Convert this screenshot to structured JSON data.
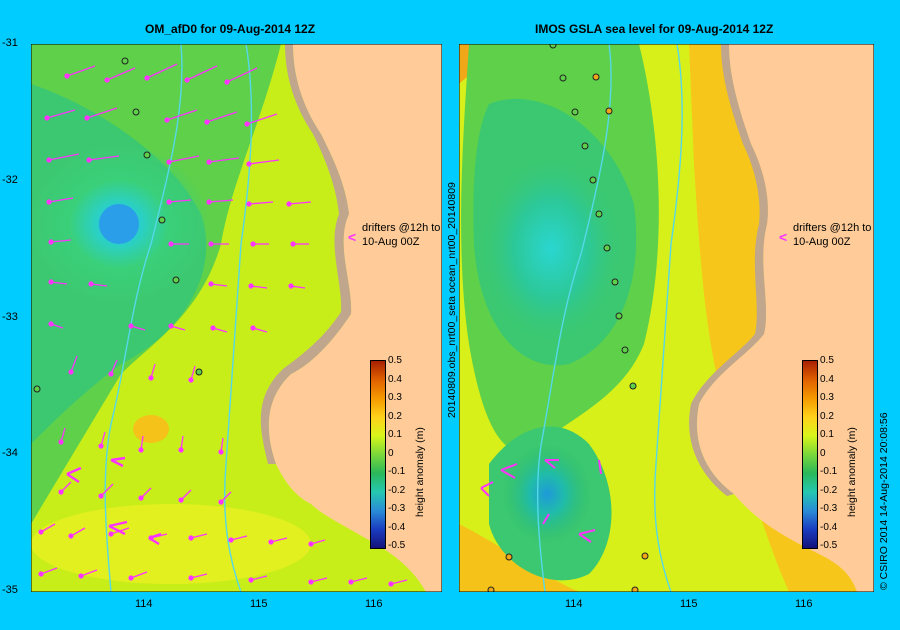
{
  "left_panel": {
    "title": "OM_afD0  for 09-Aug-2014 12Z",
    "drifter_note_line1": "drifters @12h to",
    "drifter_note_line2": "10-Aug 00Z",
    "colorbar_label": "height anomaly (m)"
  },
  "right_panel": {
    "title": "IMOS  GSLA sea level  for 09-Aug-2014 12Z",
    "side_label": "20140809.obs_nrt00_seta           ocean_nrt00_20140809",
    "drifter_note_line1": "drifters @12h to",
    "drifter_note_line2": "10-Aug 00Z",
    "colorbar_label": "height anomaly (m)"
  },
  "y_ticks": [
    "-31",
    "-32",
    "-33",
    "-34",
    "-35"
  ],
  "x_ticks": [
    "114",
    "115",
    "116"
  ],
  "colorbar_ticks": [
    "0.5",
    "0.4",
    "0.3",
    "0.2",
    "0.1",
    "0",
    "-0.1",
    "-0.2",
    "-0.3",
    "-0.4",
    "-0.5"
  ],
  "colorbar_colors": [
    "#a82000",
    "#e06000",
    "#f59a00",
    "#ffd21a",
    "#d8f51a",
    "#7ad83a",
    "#2bb85a",
    "#25c8b0",
    "#2a8cd6",
    "#1a3cc0",
    "#14127a"
  ],
  "credit": "© CSIRO 2014   14-Aug-2014 20:08:56",
  "colors": {
    "background": "#00ccff",
    "land": "#ffcc99",
    "shelf": "#bfa68c",
    "arrows": "#ff33ff",
    "bathymetry": "#55d8e8",
    "ocean_base": "#c8ee1a"
  }
}
